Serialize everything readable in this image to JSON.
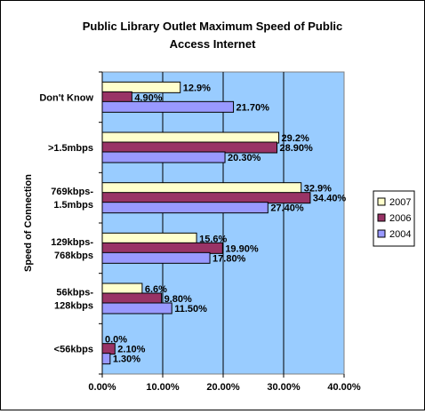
{
  "chart_data": {
    "type": "bar",
    "orientation": "horizontal",
    "title": "Public Library Outlet Maximum Speed of Public Access Internet",
    "title_lines": [
      "Public Library Outlet Maximum Speed of Public",
      "Access Internet"
    ],
    "ylabel": "Speed of Connection",
    "xlabel": "",
    "xlim": [
      0,
      40
    ],
    "x_ticks": [
      "0.00%",
      "10.00%",
      "20.00%",
      "30.00%",
      "40.00%"
    ],
    "grid": true,
    "legend_position": "right",
    "categories": [
      {
        "lines": [
          "Don't Know"
        ]
      },
      {
        "lines": [
          ">1.5mbps"
        ]
      },
      {
        "lines": [
          "769kbps-",
          "1.5mbps"
        ]
      },
      {
        "lines": [
          "129kbps-",
          "768kbps"
        ]
      },
      {
        "lines": [
          "56kbps-",
          "128kbps"
        ]
      },
      {
        "lines": [
          "<56kbps"
        ]
      }
    ],
    "series": [
      {
        "name": "2007",
        "color": "#ffffcc",
        "values": [
          12.9,
          29.2,
          32.9,
          15.6,
          6.6,
          0.0
        ],
        "labels": [
          "12.9%",
          "29.2%",
          "32.9%",
          "15.6%",
          "6.6%",
          "0.0%"
        ]
      },
      {
        "name": "2006",
        "color": "#993366",
        "values": [
          4.9,
          28.9,
          34.4,
          19.9,
          9.8,
          2.1
        ],
        "labels": [
          "4.90%",
          "28.90%",
          "34.40%",
          "19.90%",
          "9.80%",
          "2.10%"
        ]
      },
      {
        "name": "2004",
        "color": "#9999ff",
        "values": [
          21.7,
          20.3,
          27.4,
          17.8,
          11.5,
          1.3
        ],
        "labels": [
          "21.70%",
          "20.30%",
          "27.40%",
          "17.80%",
          "11.50%",
          "1.30%"
        ]
      }
    ],
    "colors": {
      "plot_background": "#99ccff",
      "gridline": "#000000",
      "bar_outline": "#000000"
    }
  }
}
